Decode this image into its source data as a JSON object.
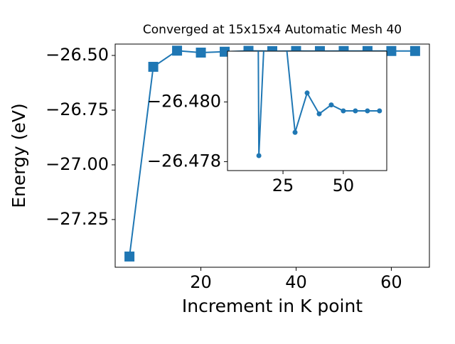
{
  "chart_data": {
    "type": "line",
    "title": "Converged at 15x15x4 Automatic Mesh 40",
    "x_label": "Increment in K point",
    "y_label": "Energy (eV)",
    "x": [
      5,
      10,
      15,
      20,
      25,
      30,
      35,
      40,
      45,
      50,
      55,
      60,
      65
    ],
    "series": [
      {
        "color": "#1f77b4",
        "values": [
          -27.419,
          -26.552,
          -26.4782,
          -26.487,
          -26.483,
          -26.47898,
          -26.4803,
          -26.4796,
          -26.4799,
          -26.4797,
          -26.4797,
          -26.4797,
          -26.4797
        ]
      }
    ],
    "xlim": [
      2,
      68
    ],
    "ylim": [
      -27.468,
      -26.448
    ],
    "xticks": [
      20,
      40,
      60
    ],
    "yticks": [
      {
        "value": -26.5,
        "label": "−26.50"
      },
      {
        "value": -26.75,
        "label": "−26.75"
      },
      {
        "value": -27.0,
        "label": "−27.00"
      },
      {
        "value": -27.25,
        "label": "−27.25"
      }
    ],
    "inset": {
      "xlim": [
        2,
        68
      ],
      "ylim": [
        -26.4777,
        -26.4817
      ],
      "xticks": [
        25,
        50
      ],
      "yticks": [
        {
          "value": -26.48,
          "label": "−26.480"
        },
        {
          "value": -26.478,
          "label": "−26.478"
        }
      ]
    }
  }
}
